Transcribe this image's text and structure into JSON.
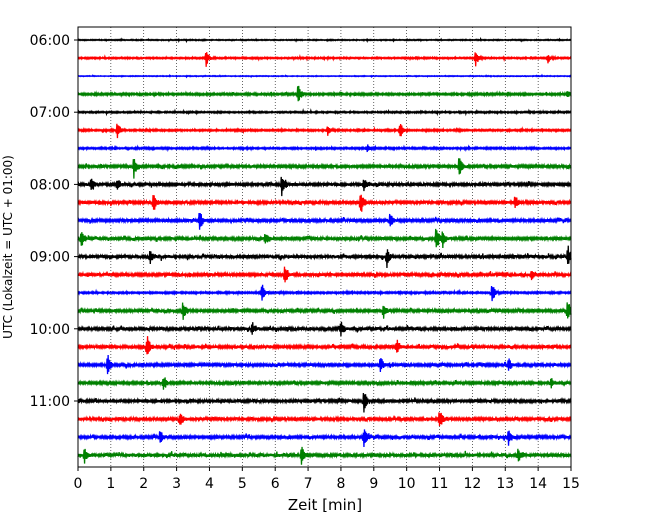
{
  "chart_data": {
    "type": "line",
    "title": "",
    "xlabel": "Zeit  [min]",
    "ylabel": "UTC (Lokalzeit = UTC + 01:00)",
    "xlim": [
      0,
      15
    ],
    "x_ticks": [
      "0",
      "1",
      "2",
      "3",
      "4",
      "5",
      "6",
      "7",
      "8",
      "9",
      "10",
      "11",
      "12",
      "13",
      "14",
      "15"
    ],
    "y_tick_labels": [
      "06:00",
      "07:00",
      "08:00",
      "09:00",
      "10:00",
      "11:00"
    ],
    "grid": "vertical dotted",
    "trace_interval_min": 15,
    "trace_colors_cycle": [
      "#000000",
      "#ff0000",
      "#0000ff",
      "#008000"
    ],
    "traces": [
      {
        "start": "06:00",
        "amplitude": 0.2,
        "events": []
      },
      {
        "start": "06:15",
        "amplitude": 0.3,
        "events": [
          {
            "t": 3.9,
            "amp": 1.2
          },
          {
            "t": 12.1,
            "amp": 1.1
          },
          {
            "t": 14.3,
            "amp": 0.7
          }
        ]
      },
      {
        "start": "06:30",
        "amplitude": 0.15,
        "events": []
      },
      {
        "start": "06:45",
        "amplitude": 0.4,
        "events": [
          {
            "t": 6.7,
            "amp": 1.6
          },
          {
            "t": 14.9,
            "amp": 0.6
          }
        ]
      },
      {
        "start": "07:00",
        "amplitude": 0.3,
        "events": []
      },
      {
        "start": "07:15",
        "amplitude": 0.35,
        "events": [
          {
            "t": 1.2,
            "amp": 1.4
          },
          {
            "t": 7.6,
            "amp": 0.8
          },
          {
            "t": 9.8,
            "amp": 1.2
          }
        ]
      },
      {
        "start": "07:30",
        "amplitude": 0.35,
        "events": [
          {
            "t": 8.8,
            "amp": 0.6
          }
        ]
      },
      {
        "start": "07:45",
        "amplitude": 0.55,
        "events": [
          {
            "t": 1.7,
            "amp": 1.6
          },
          {
            "t": 11.6,
            "amp": 1.6
          }
        ]
      },
      {
        "start": "08:00",
        "amplitude": 0.6,
        "events": [
          {
            "t": 0.4,
            "amp": 0.8
          },
          {
            "t": 1.2,
            "amp": 0.9
          },
          {
            "t": 6.2,
            "amp": 1.7
          },
          {
            "t": 8.7,
            "amp": 0.9
          }
        ]
      },
      {
        "start": "08:15",
        "amplitude": 0.6,
        "events": [
          {
            "t": 2.3,
            "amp": 1.4
          },
          {
            "t": 8.6,
            "amp": 1.9
          },
          {
            "t": 13.3,
            "amp": 1.1
          }
        ]
      },
      {
        "start": "08:30",
        "amplitude": 0.55,
        "events": [
          {
            "t": 3.7,
            "amp": 1.6
          },
          {
            "t": 9.5,
            "amp": 1.4
          }
        ]
      },
      {
        "start": "08:45",
        "amplitude": 0.55,
        "events": [
          {
            "t": 0.1,
            "amp": 1.4
          },
          {
            "t": 5.7,
            "amp": 0.9
          },
          {
            "t": 10.9,
            "amp": 1.9
          },
          {
            "t": 11.1,
            "amp": 1.2
          }
        ]
      },
      {
        "start": "09:00",
        "amplitude": 0.65,
        "events": [
          {
            "t": 2.2,
            "amp": 1.0
          },
          {
            "t": 9.4,
            "amp": 1.3
          },
          {
            "t": 14.9,
            "amp": 1.7
          }
        ]
      },
      {
        "start": "09:15",
        "amplitude": 0.6,
        "events": [
          {
            "t": 6.3,
            "amp": 1.5
          },
          {
            "t": 13.8,
            "amp": 1.0
          }
        ]
      },
      {
        "start": "09:30",
        "amplitude": 0.35,
        "events": [
          {
            "t": 5.6,
            "amp": 1.3
          },
          {
            "t": 12.6,
            "amp": 1.5
          }
        ]
      },
      {
        "start": "09:45",
        "amplitude": 0.55,
        "events": [
          {
            "t": 3.2,
            "amp": 1.5
          },
          {
            "t": 9.3,
            "amp": 1.1
          },
          {
            "t": 14.9,
            "amp": 1.8
          }
        ]
      },
      {
        "start": "10:00",
        "amplitude": 0.6,
        "events": [
          {
            "t": 5.3,
            "amp": 1.0
          },
          {
            "t": 8.0,
            "amp": 1.0
          }
        ]
      },
      {
        "start": "10:15",
        "amplitude": 0.6,
        "events": [
          {
            "t": 2.1,
            "amp": 1.7
          },
          {
            "t": 9.7,
            "amp": 1.1
          }
        ]
      },
      {
        "start": "10:30",
        "amplitude": 0.55,
        "events": [
          {
            "t": 0.9,
            "amp": 1.6
          },
          {
            "t": 9.2,
            "amp": 1.3
          },
          {
            "t": 13.1,
            "amp": 1.0
          }
        ]
      },
      {
        "start": "10:45",
        "amplitude": 0.55,
        "events": [
          {
            "t": 2.6,
            "amp": 1.2
          },
          {
            "t": 14.4,
            "amp": 0.8
          }
        ]
      },
      {
        "start": "11:00",
        "amplitude": 0.6,
        "events": [
          {
            "t": 8.7,
            "amp": 1.6
          }
        ]
      },
      {
        "start": "11:15",
        "amplitude": 0.6,
        "events": [
          {
            "t": 3.1,
            "amp": 1.1
          },
          {
            "t": 11.0,
            "amp": 1.6
          }
        ]
      },
      {
        "start": "11:30",
        "amplitude": 0.55,
        "events": [
          {
            "t": 2.5,
            "amp": 0.9
          },
          {
            "t": 8.7,
            "amp": 1.7
          },
          {
            "t": 13.1,
            "amp": 1.1
          }
        ]
      },
      {
        "start": "11:45",
        "amplitude": 0.65,
        "events": [
          {
            "t": 0.2,
            "amp": 1.2
          },
          {
            "t": 6.8,
            "amp": 1.5
          },
          {
            "t": 13.4,
            "amp": 1.0
          }
        ]
      }
    ]
  }
}
